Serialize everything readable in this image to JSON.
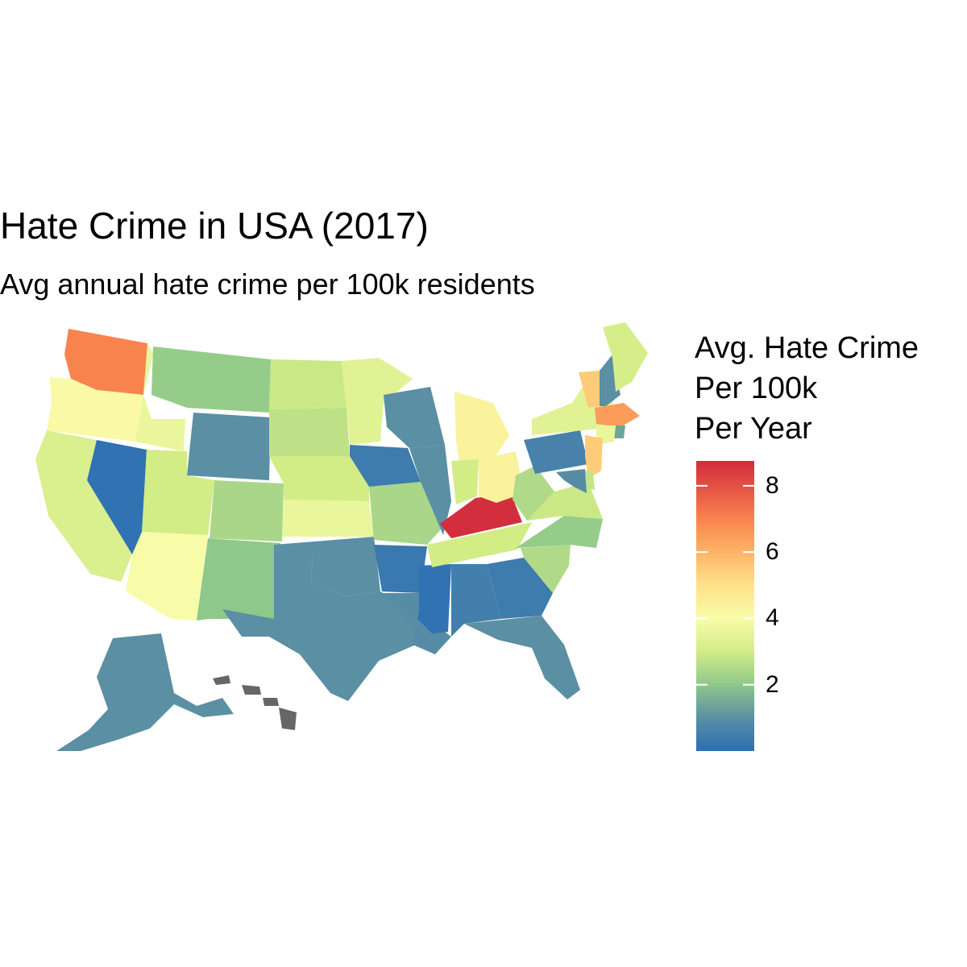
{
  "title": "Hate Crime in USA (2017)",
  "subtitle": "Avg annual hate crime per 100k residents",
  "legend": {
    "title_lines": [
      "Avg. Hate Crime",
      "Per 100k",
      "Per Year"
    ],
    "scale_min": 0,
    "scale_max": 8.75,
    "ticks": [
      {
        "value": 2,
        "label": "2"
      },
      {
        "value": 4,
        "label": "4"
      },
      {
        "value": 6,
        "label": "6"
      },
      {
        "value": 8,
        "label": "8"
      }
    ],
    "palette": "Spectral (reversed): blue = low, red = high",
    "color_stops": [
      {
        "value": 0,
        "color": "#2b6fb4"
      },
      {
        "value": 1,
        "color": "#5b8fa3"
      },
      {
        "value": 2,
        "color": "#8ec88a"
      },
      {
        "value": 3,
        "color": "#d2ec86"
      },
      {
        "value": 4,
        "color": "#f8fca9"
      },
      {
        "value": 5,
        "color": "#fee28a"
      },
      {
        "value": 6,
        "color": "#fdb466"
      },
      {
        "value": 7,
        "color": "#f8834d"
      },
      {
        "value": 8.75,
        "color": "#d22b3e"
      }
    ],
    "na_color": "#666666"
  },
  "states": {
    "WA": 7.0,
    "OR": 4.1,
    "CA": 3.2,
    "NV": 0.1,
    "ID": 3.6,
    "MT": 2.1,
    "WY": 1.0,
    "UT": 3.0,
    "AZ": 4.0,
    "CO": 2.4,
    "NM": 2.0,
    "ND": 2.9,
    "SD": 2.7,
    "NE": 3.0,
    "KS": 3.6,
    "OK": 1.0,
    "TX": 1.0,
    "MN": 3.4,
    "IA": 0.4,
    "MO": 2.4,
    "AR": 0.3,
    "LA": 0.9,
    "WI": 1.0,
    "IL": 1.0,
    "MS": 0.1,
    "AL": 0.5,
    "TN": 3.0,
    "KY": 8.7,
    "MI": 4.4,
    "IN": 3.0,
    "OH": 4.4,
    "GA": 0.4,
    "FL": 1.0,
    "SC": 2.5,
    "NC": 2.1,
    "VA": 2.9,
    "WV": 2.5,
    "PA": 0.6,
    "NY": 3.4,
    "VT": 5.5,
    "NH": 1.0,
    "ME": 3.1,
    "MA": 6.5,
    "RI": 1.4,
    "CT": 3.6,
    "NJ": 5.5,
    "DE": 2.8,
    "MD": 0.9,
    "AK": 1.0,
    "HI": null
  }
}
